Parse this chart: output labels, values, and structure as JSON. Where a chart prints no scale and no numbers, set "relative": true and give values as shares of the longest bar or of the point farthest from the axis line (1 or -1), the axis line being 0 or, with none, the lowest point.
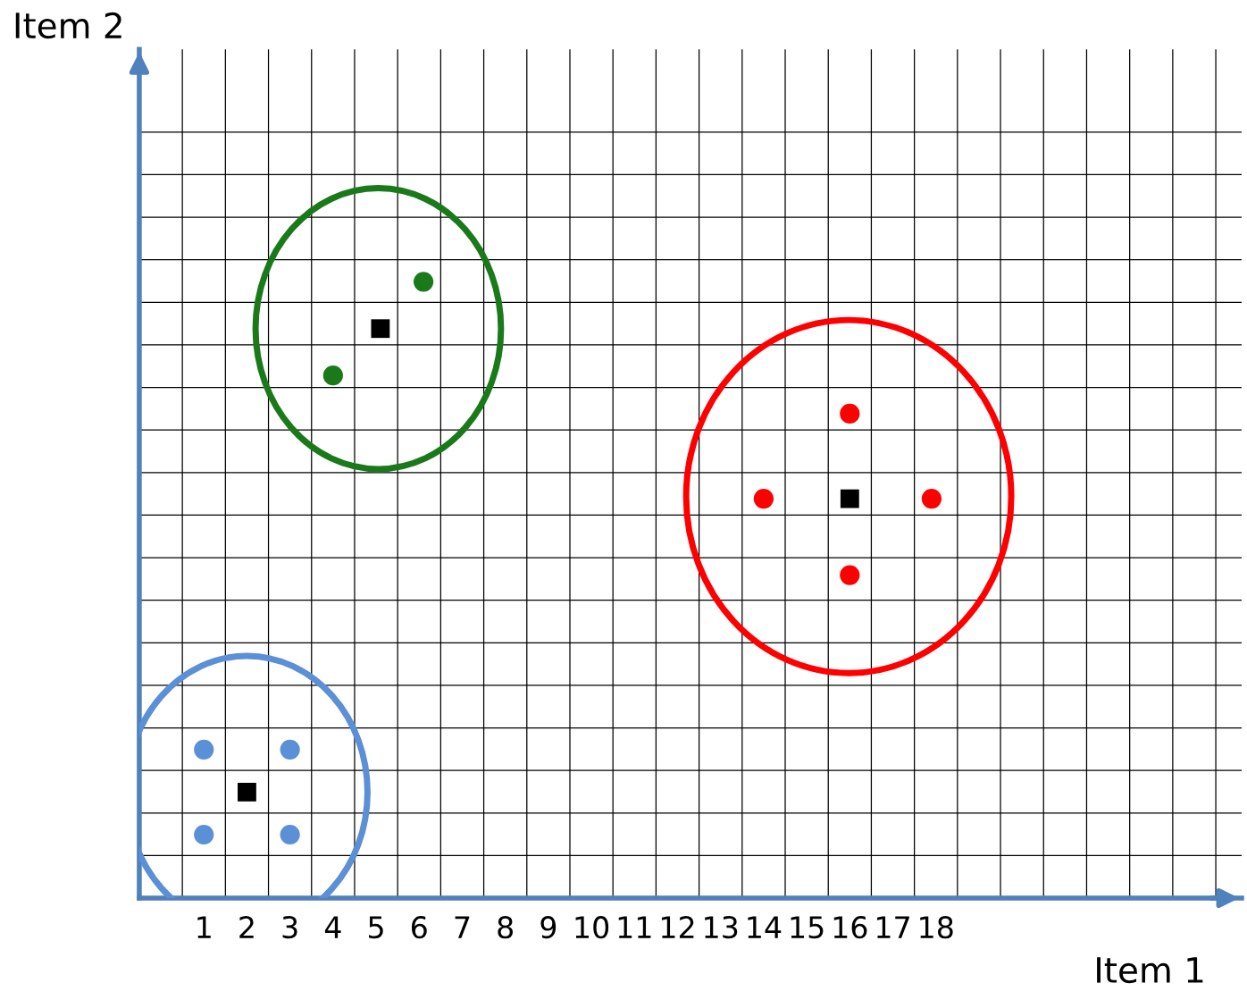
{
  "chart_data": {
    "type": "scatter",
    "xlabel": "Item 1",
    "annotations": [
      "Item 2"
    ],
    "relative": true,
    "xlim": [
      -0.5,
      25.1
    ],
    "xticks": [
      1,
      2,
      3,
      4,
      5,
      6,
      7,
      8,
      9,
      10,
      11,
      12,
      13,
      14,
      15,
      16,
      17,
      18,
      {
        "value": 0.5,
        "label": null
      },
      {
        "value": 1.5,
        "label": null
      },
      {
        "value": 2.5,
        "label": null
      },
      {
        "value": 3.5,
        "label": null
      },
      {
        "value": 4.5,
        "label": null
      },
      {
        "value": 5.5,
        "label": null
      },
      {
        "value": 6.5,
        "label": null
      },
      {
        "value": 7.5,
        "label": null
      },
      {
        "value": 8.5,
        "label": null
      },
      {
        "value": 9.5,
        "label": null
      },
      {
        "value": 10.5,
        "label": null
      },
      {
        "value": 11.5,
        "label": null
      },
      {
        "value": 12.5,
        "label": null
      },
      {
        "value": 13.5,
        "label": null
      },
      {
        "value": 14.5,
        "label": null
      },
      {
        "value": 15.5,
        "label": null
      },
      {
        "value": 16.5,
        "label": null
      },
      {
        "value": 17.5,
        "label": null
      },
      {
        "value": 18.5,
        "label": null
      },
      {
        "value": 19.5,
        "label": null
      },
      {
        "value": 20.5,
        "label": null
      },
      {
        "value": 21.5,
        "label": null
      },
      {
        "value": 22.5,
        "label": null
      },
      {
        "value": 23.5,
        "label": null
      },
      {
        "value": 24.5,
        "label": null
      }
    ],
    "grid": true,
    "series": [
      {
        "color": "#5b8fd6",
        "marker": "circle",
        "x": [
          1,
          3,
          1,
          3
        ],
        "values": [
          0.241,
          0.241,
          0.103,
          0.103
        ]
      },
      {
        "color": "#1a7a1a",
        "marker": "circle",
        "x": [
          6.1,
          4
        ],
        "values": [
          1,
          0.848
        ]
      },
      {
        "color": "#ff0000",
        "marker": "circle",
        "x": [
          16,
          14,
          17.9,
          16
        ],
        "values": [
          0.786,
          0.648,
          0.648,
          0.524
        ]
      },
      {
        "color": "#000000",
        "marker": "square",
        "x": [
          2,
          5.1,
          16
        ],
        "values": [
          0.172,
          0.924,
          0.648
        ]
      }
    ]
  }
}
